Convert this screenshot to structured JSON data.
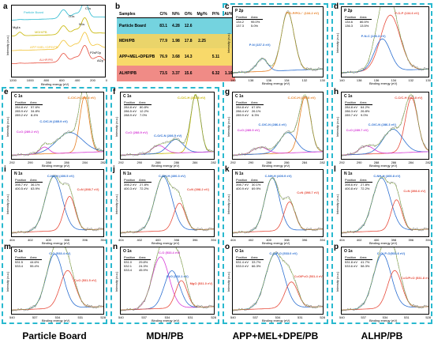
{
  "panel_a": {
    "letter": "a",
    "series": [
      "Particle Board",
      "MDH/PB",
      "APP+MEL+DPE/PB",
      "ALHP/PB"
    ],
    "series_colors": [
      "#29b9cf",
      "#c6b500",
      "#f1c232",
      "#e74c3c"
    ],
    "peak_labels": [
      "Mg1s",
      "O1s",
      "N1s",
      "C1s",
      "P2sP2p",
      "Al2p"
    ],
    "xticks": [
      "1200",
      "1000",
      "800",
      "600",
      "400",
      "200",
      "0"
    ],
    "xlabel": "Binding energy (eV)",
    "ylabel": "Intensity (a.u.)"
  },
  "panel_b": {
    "letter": "b",
    "headers": [
      "Samples",
      "C/%",
      "N/%",
      "O/%",
      "Mg/%",
      "P/%",
      "Al/%"
    ],
    "rows": [
      {
        "sample": "Particle Board",
        "values": [
          "83.1",
          "4.28",
          "12.6",
          "",
          "",
          ""
        ],
        "color": "#74d3df"
      },
      {
        "sample": "MDH/PB",
        "values": [
          "77.9",
          "1.98",
          "17.8",
          "2.25",
          "",
          ""
        ],
        "color": "#ead46a"
      },
      {
        "sample": "APP+MEL+DPE/PB",
        "values": [
          "76.9",
          "3.68",
          "14.3",
          "",
          "5.11",
          ""
        ],
        "color": "#f8d96a"
      },
      {
        "sample": "ALHP/PB",
        "values": [
          "73.5",
          "3.37",
          "15.6",
          "",
          "6.32",
          "1.16"
        ],
        "color": "#f08b86"
      }
    ]
  },
  "panels": [
    {
      "letter": "c",
      "title": "P 2p",
      "table": [
        [
          "Position",
          "Area"
        ],
        [
          "134.2",
          "95.0%"
        ],
        [
          "137.3",
          "5.0%"
        ]
      ],
      "peaks": [
        "P-O-P/PO₃⁻ (134.2 eV)",
        "P-N (137.3 eV)"
      ],
      "peak_colors": [
        "#e67e22",
        "#2c6fd1"
      ],
      "xticks": [
        "140",
        "138",
        "136",
        "134",
        "132",
        "130"
      ],
      "xlabel": "Binding energy (eV)",
      "ylabel": "Intensity (a.u.)"
    },
    {
      "letter": "d",
      "title": "P 2p",
      "table": [
        [
          "Position",
          "Area"
        ],
        [
          "134.6",
          "86.5%"
        ],
        [
          "136.3",
          "13.5%"
        ]
      ],
      "peaks": [
        "P-O-P (134.6 eV)",
        "P-N-C (136.3 eV)"
      ],
      "peak_colors": [
        "#e74c3c",
        "#2c6fd1"
      ],
      "xticks": [
        "140",
        "138",
        "136",
        "134",
        "132",
        "130"
      ],
      "xlabel": "Binding energy (eV)",
      "ylabel": "Intensity (a.u.)"
    },
    {
      "letter": "e",
      "title": "C 1s",
      "table": [
        [
          "Position",
          "Area"
        ],
        [
          "284.8 eV",
          "57.6%"
        ],
        [
          "285.9 eV",
          "34.8%"
        ],
        [
          "289.2 eV",
          "8.4%"
        ]
      ],
      "peaks": [
        "C-C/C-H (284.8 eV)",
        "C-O/C-N (285.9 eV)",
        "C=O (289.2 eV)"
      ],
      "peak_colors": [
        "#e67e22",
        "#2c6fd1",
        "#d63ad6"
      ],
      "xticks": [
        "292",
        "290",
        "288",
        "286",
        "284",
        "282"
      ],
      "xlabel": "Binding energy (eV)",
      "ylabel": "Intensity (a.u.)"
    },
    {
      "letter": "f",
      "title": "C 1s",
      "table": [
        [
          "Position",
          "Area"
        ],
        [
          "284.8 eV",
          "80.8%"
        ],
        [
          "286.5 eV",
          "12.2%"
        ],
        [
          "288.9 eV",
          "7.0%"
        ]
      ],
      "peaks": [
        "C-C/C-H (284.8 eV)",
        "C-O/C-N (286.5 eV)",
        "C=O (288.9 eV)"
      ],
      "peak_colors": [
        "#c6b500",
        "#2c6fd1",
        "#d63ad6"
      ],
      "xticks": [
        "292",
        "290",
        "288",
        "286",
        "284",
        "282"
      ],
      "xlabel": "Binding energy (eV)",
      "ylabel": "Intensity (a.u.)"
    },
    {
      "letter": "g",
      "title": "C 1s",
      "table": [
        [
          "Position",
          "Area"
        ],
        [
          "284.8 eV",
          "67.6%"
        ],
        [
          "286.4 eV",
          "26.1%"
        ],
        [
          "289.9 eV",
          "6.3%"
        ]
      ],
      "peaks": [
        "C-C/C-H (284.8 eV)",
        "C-O/C-N (286.4 eV)",
        "C=O (289.9 eV)"
      ],
      "peak_colors": [
        "#e67e22",
        "#2c6fd1",
        "#d63ad6"
      ],
      "xticks": [
        "292",
        "290",
        "288",
        "286",
        "284",
        "282"
      ],
      "xlabel": "Binding energy (eV)",
      "ylabel": "Intensity (a.u.)"
    },
    {
      "letter": "h",
      "title": "C 1s",
      "table": [
        [
          "Position",
          "Area"
        ],
        [
          "284.8 eV",
          "64.2%"
        ],
        [
          "286.3 eV",
          "26.8%"
        ],
        [
          "289.7 eV",
          "9.0%"
        ]
      ],
      "peaks": [
        "C-C/C-H (284.8 eV)",
        "C-O/C-N (286.3 eV)",
        "C=O (289.7 eV)"
      ],
      "peak_colors": [
        "#e74c3c",
        "#2c6fd1",
        "#d63ad6"
      ],
      "xticks": [
        "292",
        "290",
        "288",
        "286",
        "284",
        "282"
      ],
      "xlabel": "Binding energy (eV)",
      "ylabel": "Intensity (a.u.)"
    },
    {
      "letter": "i",
      "title": "N 1s",
      "table": [
        [
          "Position",
          "Area"
        ],
        [
          "398.7 eV",
          "36.1%"
        ],
        [
          "400.5 eV",
          "63.9%"
        ]
      ],
      "peaks": [
        "C-NH-H (400.5 eV)",
        "C=N (398.7 eV)"
      ],
      "peak_colors": [
        "#2c6fd1",
        "#e74c3c"
      ],
      "xticks": [
        "404",
        "402",
        "400",
        "398",
        "396",
        "394"
      ],
      "xlabel": "Binding energy (eV)",
      "ylabel": "Intensity (a.u.)"
    },
    {
      "letter": "j",
      "title": "N 1s",
      "table": [
        [
          "Position",
          "Area"
        ],
        [
          "398.2 eV",
          "27.8%"
        ],
        [
          "400.3 eV",
          "72.2%"
        ]
      ],
      "peaks": [
        "C-NH-H (400.3 eV)",
        "C=N (398.2 eV)"
      ],
      "peak_colors": [
        "#2c6fd1",
        "#e74c3c"
      ],
      "xticks": [
        "404",
        "402",
        "400",
        "398",
        "396",
        "394"
      ],
      "xlabel": "Binding energy (eV)",
      "ylabel": "Intensity (a.u.)"
    },
    {
      "letter": "k",
      "title": "N 1s",
      "table": [
        [
          "Position",
          "Area"
        ],
        [
          "398.7 eV",
          "30.1%"
        ],
        [
          "400.9 eV",
          "69.9%"
        ]
      ],
      "peaks": [
        "C-NH-H (400.9 eV)",
        "C=N (398.7 eV)"
      ],
      "peak_colors": [
        "#2c6fd1",
        "#e74c3c"
      ],
      "xticks": [
        "404",
        "402",
        "400",
        "398",
        "396",
        "394"
      ],
      "xlabel": "Binding energy (eV)",
      "ylabel": "Intensity (a.u.)"
    },
    {
      "letter": "l",
      "title": "N 1s",
      "table": [
        [
          "Position",
          "Area"
        ],
        [
          "398.6 eV",
          "27.8%"
        ],
        [
          "400.8 eV",
          "72.2%"
        ]
      ],
      "peaks": [
        "C-NH-H (400.8 eV)",
        "C=N (398.6 eV)"
      ],
      "peak_colors": [
        "#2c6fd1",
        "#e74c3c"
      ],
      "xticks": [
        "404",
        "402",
        "400",
        "398",
        "396",
        "394"
      ],
      "xlabel": "Binding energy (eV)",
      "ylabel": "Intensity (a.u.)"
    },
    {
      "letter": "m",
      "title": "O 1s",
      "table": [
        [
          "Position",
          "Area"
        ],
        [
          "531.5",
          "44.6%"
        ],
        [
          "533.4",
          "55.4%"
        ]
      ],
      "peaks": [
        "C-O (533.4 eV)",
        "C=O (531.5 eV)"
      ],
      "peak_colors": [
        "#2c6fd1",
        "#e74c3c"
      ],
      "xticks": [
        "540",
        "537",
        "534",
        "531",
        "528"
      ],
      "xlabel": "Binding energy (eV)",
      "ylabel": "Intensity (a.u.)"
    },
    {
      "letter": "n",
      "title": "O 1s",
      "table": [
        [
          "Position",
          "Area"
        ],
        [
          "531.0",
          "29.8%"
        ],
        [
          "532.1",
          "24.3%"
        ],
        [
          "533.4",
          "45.9%"
        ]
      ],
      "peaks": [
        "C-O (533.4 eV)",
        "C=O (532.1 eV)",
        "MgO (531.0 eV)"
      ],
      "peak_colors": [
        "#d63ad6",
        "#2c6fd1",
        "#e74c3c"
      ],
      "xticks": [
        "540",
        "537",
        "534",
        "531",
        "528"
      ],
      "xlabel": "Binding energy (eV)",
      "ylabel": "Intensity (a.u.)"
    },
    {
      "letter": "o",
      "title": "O 1s",
      "table": [
        [
          "Position",
          "Area"
        ],
        [
          "531.4 eV",
          "33.7%"
        ],
        [
          "533.0 eV",
          "66.3%"
        ]
      ],
      "peaks": [
        "C-O/P-O (533.0 eV)",
        "C=O/P=O (531.4 eV)"
      ],
      "peak_colors": [
        "#2c6fd1",
        "#e74c3c"
      ],
      "xticks": [
        "540",
        "537",
        "534",
        "531",
        "528"
      ],
      "xlabel": "Binding energy (eV)",
      "ylabel": "Intensity (a.u.)"
    },
    {
      "letter": "p",
      "title": "O 1s",
      "table": [
        [
          "Position",
          "Area"
        ],
        [
          "531.8 eV",
          "41.7%"
        ],
        [
          "533.6 eV",
          "58.3%"
        ]
      ],
      "peaks": [
        "C-O/ P-O(533.6 eV)",
        "C=O/P=O (531.8 eV)"
      ],
      "peak_colors": [
        "#2c6fd1",
        "#e74c3c"
      ],
      "xticks": [
        "540",
        "537",
        "534",
        "531",
        "528"
      ],
      "xlabel": "Binding energy (eV)",
      "ylabel": "Intensity (a.u.)"
    }
  ],
  "column_labels": [
    "Particle Board",
    "MDH/PB",
    "APP+MEL+DPE/PB",
    "ALHP/PB"
  ]
}
